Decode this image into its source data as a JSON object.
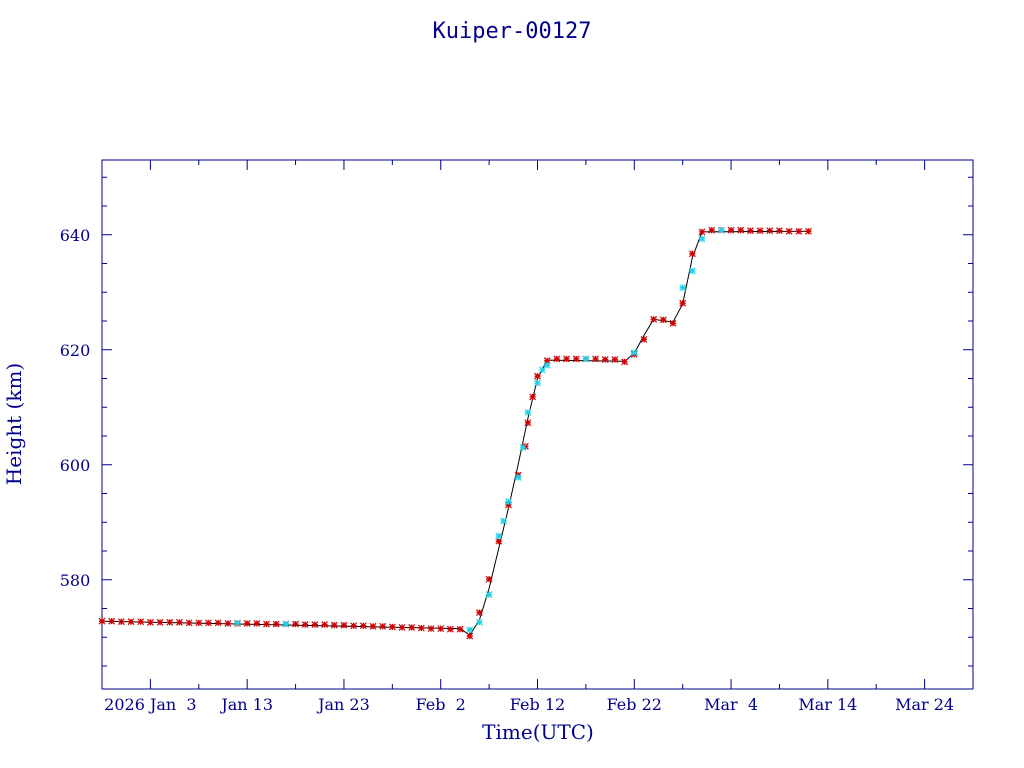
{
  "chart_data": {
    "type": "scatter",
    "title": "Kuiper-00127",
    "xlabel": "Time(UTC)",
    "ylabel": "Height (km)",
    "x_ticks": [
      {
        "date": "2026-01-03",
        "label": "2026 Jan  3"
      },
      {
        "date": "2026-01-13",
        "label": "Jan 13"
      },
      {
        "date": "2026-01-23",
        "label": "Jan 23"
      },
      {
        "date": "2026-02-02",
        "label": "Feb  2"
      },
      {
        "date": "2026-02-12",
        "label": "Feb 12"
      },
      {
        "date": "2026-02-22",
        "label": "Feb 22"
      },
      {
        "date": "2026-03-04",
        "label": "Mar  4"
      },
      {
        "date": "2026-03-14",
        "label": "Mar 14"
      },
      {
        "date": "2026-03-24",
        "label": "Mar 24"
      }
    ],
    "xlim": [
      "2025-12-29",
      "2026-03-29"
    ],
    "ylim": [
      561,
      653
    ],
    "y_ticks": [
      580,
      600,
      620,
      640
    ],
    "grid": false,
    "colors": {
      "axes": "#00008b",
      "line": "#000000",
      "series_a": "#cc0000",
      "series_b": "#22d3e8"
    },
    "series": [
      {
        "color": "#cc0000",
        "points": [
          [
            "2025-12-29",
            572.8
          ],
          [
            "2025-12-30",
            572.8
          ],
          [
            "2025-12-31",
            572.7
          ],
          [
            "2026-01-01",
            572.7
          ],
          [
            "2026-01-02",
            572.7
          ],
          [
            "2026-01-03",
            572.6
          ],
          [
            "2026-01-04",
            572.6
          ],
          [
            "2026-01-05",
            572.6
          ],
          [
            "2026-01-06",
            572.6
          ],
          [
            "2026-01-07",
            572.5
          ],
          [
            "2026-01-08",
            572.5
          ],
          [
            "2026-01-09",
            572.5
          ],
          [
            "2026-01-10",
            572.5
          ],
          [
            "2026-01-11",
            572.4
          ],
          [
            "2026-01-12",
            572.4
          ],
          [
            "2026-01-13",
            572.4
          ],
          [
            "2026-01-14",
            572.4
          ],
          [
            "2026-01-15",
            572.3
          ],
          [
            "2026-01-16",
            572.3
          ],
          [
            "2026-01-17",
            572.3
          ],
          [
            "2026-01-18",
            572.3
          ],
          [
            "2026-01-19",
            572.2
          ],
          [
            "2026-01-20",
            572.2
          ],
          [
            "2026-01-21",
            572.2
          ],
          [
            "2026-01-22",
            572.1
          ],
          [
            "2026-01-23",
            572.1
          ],
          [
            "2026-01-24",
            572.0
          ],
          [
            "2026-01-25",
            572.0
          ],
          [
            "2026-01-26",
            571.9
          ],
          [
            "2026-01-27",
            571.9
          ],
          [
            "2026-01-28",
            571.8
          ],
          [
            "2026-01-29",
            571.7
          ],
          [
            "2026-01-30",
            571.7
          ],
          [
            "2026-01-31",
            571.6
          ],
          [
            "2026-02-01",
            571.5
          ],
          [
            "2026-02-02",
            571.5
          ],
          [
            "2026-02-03",
            571.4
          ],
          [
            "2026-02-04",
            571.4
          ],
          [
            "2026-02-05",
            570.2
          ],
          [
            "2026-02-06",
            574.3
          ],
          [
            "2026-02-07",
            580.1
          ],
          [
            "2026-02-08",
            586.7
          ],
          [
            "2026-02-09",
            593.0
          ],
          [
            "2026-02-10",
            598.2
          ],
          [
            "2026-02-10T18:00",
            603.2
          ],
          [
            "2026-02-11",
            607.3
          ],
          [
            "2026-02-11T12:00",
            611.8
          ],
          [
            "2026-02-12",
            615.4
          ],
          [
            "2026-02-13",
            618.1
          ],
          [
            "2026-02-14",
            618.4
          ],
          [
            "2026-02-15",
            618.4
          ],
          [
            "2026-02-16",
            618.4
          ],
          [
            "2026-02-17",
            618.4
          ],
          [
            "2026-02-18",
            618.4
          ],
          [
            "2026-02-19",
            618.3
          ],
          [
            "2026-02-20",
            618.3
          ],
          [
            "2026-02-21",
            617.9
          ],
          [
            "2026-02-22",
            619.2
          ],
          [
            "2026-02-23",
            621.8
          ],
          [
            "2026-02-24",
            625.3
          ],
          [
            "2026-02-25",
            625.2
          ],
          [
            "2026-02-26",
            624.6
          ],
          [
            "2026-02-27",
            628.1
          ],
          [
            "2026-02-28",
            636.7
          ],
          [
            "2026-03-01",
            640.5
          ],
          [
            "2026-03-02",
            640.8
          ],
          [
            "2026-03-03",
            640.8
          ],
          [
            "2026-03-04",
            640.8
          ],
          [
            "2026-03-05",
            640.8
          ],
          [
            "2026-03-06",
            640.7
          ],
          [
            "2026-03-07",
            640.7
          ],
          [
            "2026-03-08",
            640.7
          ],
          [
            "2026-03-09",
            640.7
          ],
          [
            "2026-03-10",
            640.6
          ],
          [
            "2026-03-11",
            640.6
          ],
          [
            "2026-03-12",
            640.6
          ]
        ]
      },
      {
        "color": "#22d3e8",
        "points": [
          [
            "2026-01-12",
            572.5
          ],
          [
            "2026-01-17",
            572.3
          ],
          [
            "2026-02-05",
            571.3
          ],
          [
            "2026-02-06",
            572.6
          ],
          [
            "2026-02-07",
            577.4
          ],
          [
            "2026-02-08",
            587.6
          ],
          [
            "2026-02-08T12:00",
            590.2
          ],
          [
            "2026-02-09",
            593.6
          ],
          [
            "2026-02-10",
            597.8
          ],
          [
            "2026-02-10T12:00",
            603.0
          ],
          [
            "2026-02-11",
            609.1
          ],
          [
            "2026-02-12",
            614.2
          ],
          [
            "2026-02-12T12:00",
            616.5
          ],
          [
            "2026-02-13",
            617.3
          ],
          [
            "2026-02-17",
            618.4
          ],
          [
            "2026-02-22",
            619.5
          ],
          [
            "2026-02-27",
            630.8
          ],
          [
            "2026-02-28",
            633.7
          ],
          [
            "2026-03-01",
            639.3
          ],
          [
            "2026-03-03",
            640.8
          ]
        ]
      }
    ],
    "line": [
      [
        "2025-12-29",
        572.8
      ],
      [
        "2026-02-04",
        571.5
      ],
      [
        "2026-02-05",
        570.4
      ],
      [
        "2026-02-06",
        573.0
      ],
      [
        "2026-02-07",
        578.5
      ],
      [
        "2026-02-09",
        592.5
      ],
      [
        "2026-02-10",
        600.0
      ],
      [
        "2026-02-11",
        608.0
      ],
      [
        "2026-02-12",
        615.0
      ],
      [
        "2026-02-13",
        618.2
      ],
      [
        "2026-02-21",
        618.0
      ],
      [
        "2026-02-22",
        619.4
      ],
      [
        "2026-02-23",
        622.5
      ],
      [
        "2026-02-24",
        625.3
      ],
      [
        "2026-02-26",
        624.8
      ],
      [
        "2026-02-27",
        628.0
      ],
      [
        "2026-02-28",
        636.0
      ],
      [
        "2026-03-01",
        640.5
      ],
      [
        "2026-03-12",
        640.6
      ]
    ]
  }
}
